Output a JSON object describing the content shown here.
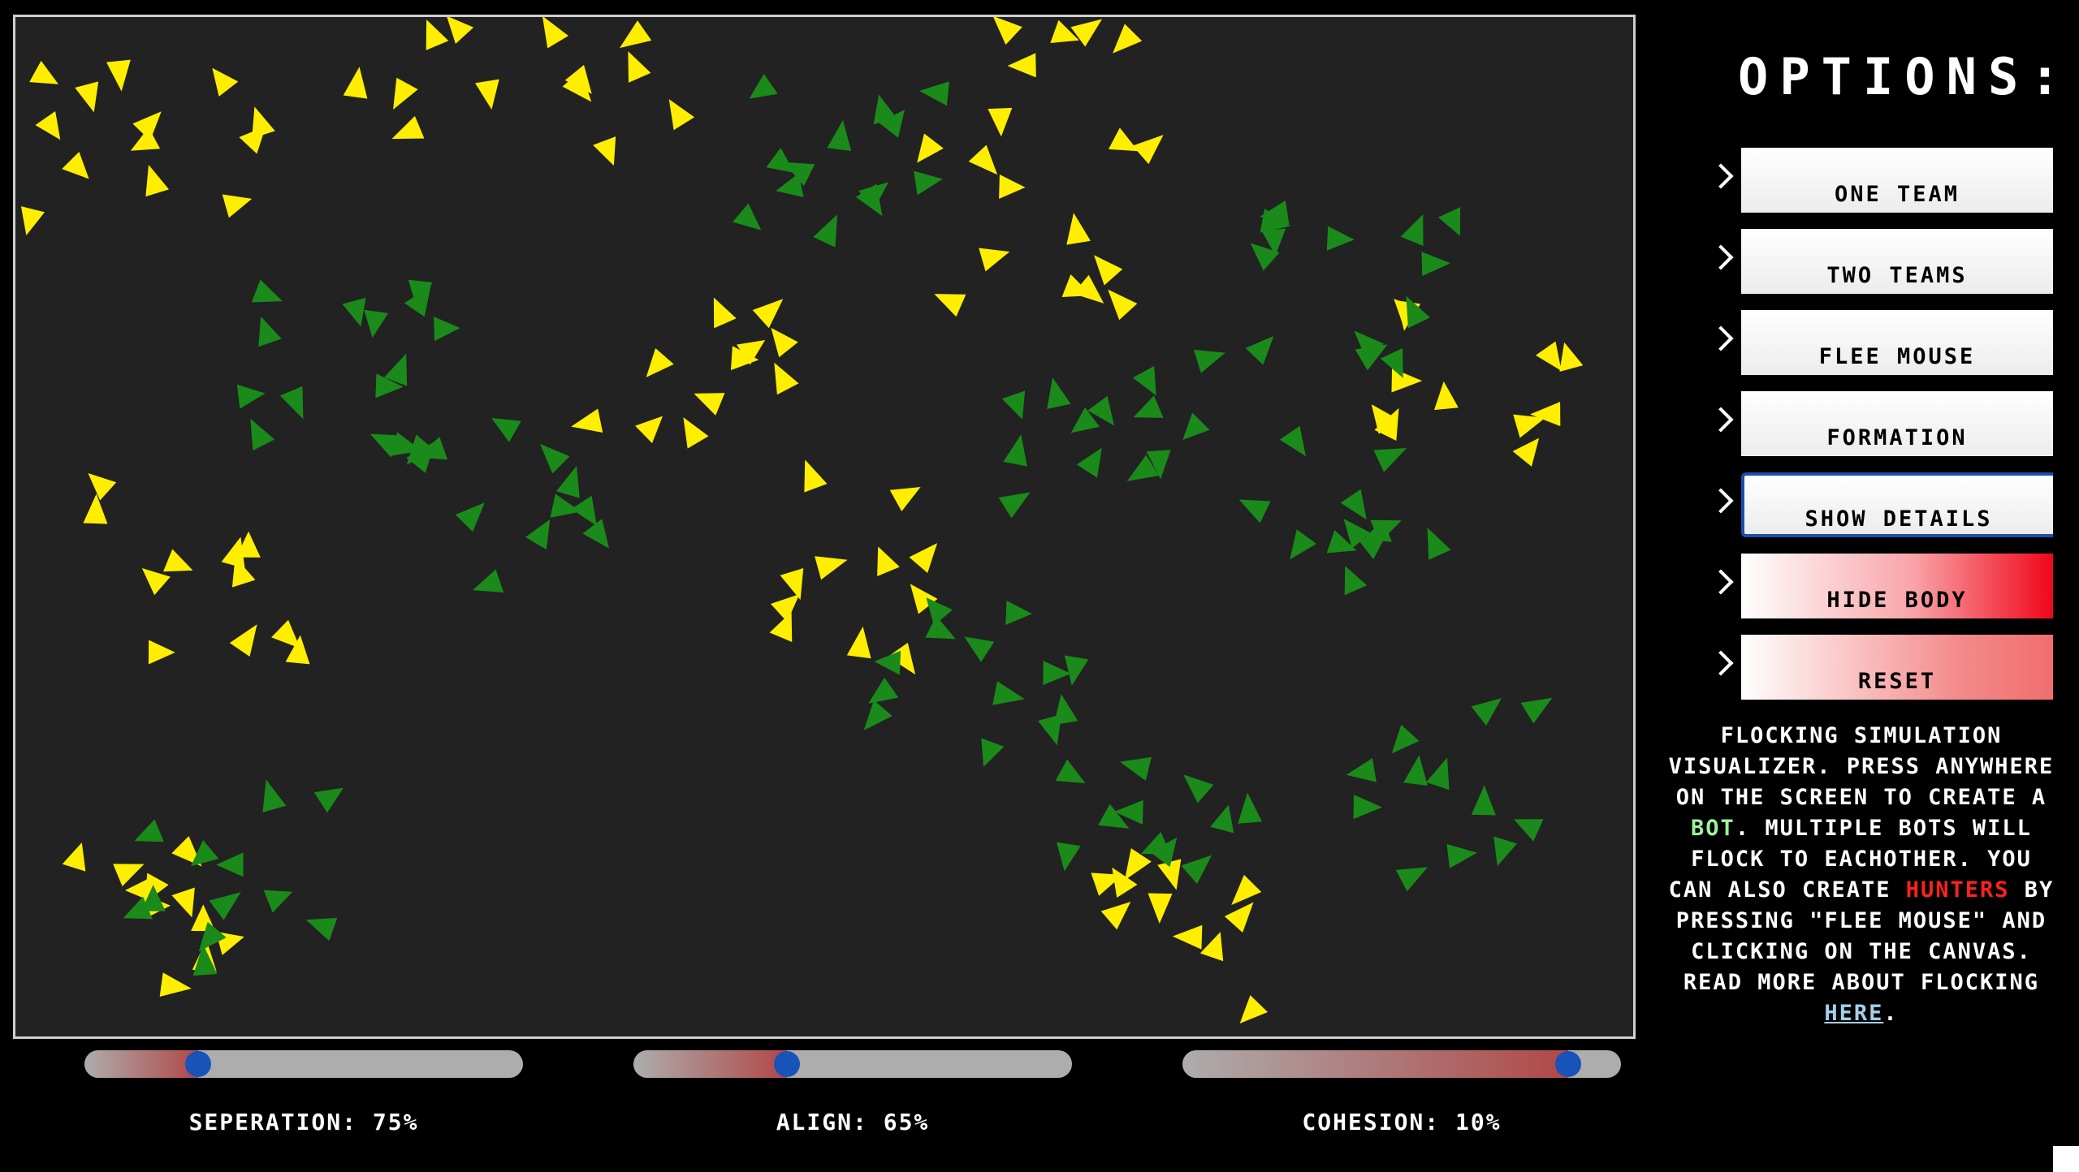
{
  "options": {
    "title": "OPTIONS:",
    "buttons": [
      {
        "label": "ONE TEAM",
        "style": "plain",
        "focused": false
      },
      {
        "label": "TWO TEAMS",
        "style": "plain",
        "focused": false
      },
      {
        "label": "FLEE MOUSE",
        "style": "plain",
        "focused": false
      },
      {
        "label": "FORMATION",
        "style": "plain",
        "focused": false
      },
      {
        "label": "SHOW DETAILS",
        "style": "plain",
        "focused": true
      },
      {
        "label": "HIDE BODY",
        "style": "red-strong",
        "focused": false
      },
      {
        "label": "RESET",
        "style": "red-soft",
        "focused": false
      }
    ]
  },
  "description": {
    "part1": "FLOCKING SIMULATION VISUALIZER. PRESS ANYWHERE ON THE SCREEN TO CREATE A ",
    "bot": "BOT",
    "part2": ". MULTIPLE BOTS WILL FLOCK TO EACHOTHER. YOU CAN ALSO CREATE ",
    "hunters": "HUNTERS",
    "part3": " BY PRESSING \"FLEE MOUSE\" AND CLICKING ON THE CANVAS. READ MORE ABOUT FLOCKING ",
    "link": "HERE",
    "part4": "."
  },
  "sliders": [
    {
      "label": "SEPERATION: 75%",
      "level": 0.26
    },
    {
      "label": "ALIGN: 65%",
      "level": 0.35
    },
    {
      "label": "COHESION: 10%",
      "level": 0.88
    }
  ],
  "colors": {
    "canvas_bg": "#222222",
    "yellow_bot": "#ffee00",
    "green_bot": "#1a8a1a",
    "slider_track": "#adadad",
    "slider_fill": "#b04848",
    "slider_knob": "#1753b8",
    "focus_border": "#1a4fae"
  },
  "flock": {
    "seed": 7,
    "yellow_count": 120,
    "green_count": 125
  }
}
